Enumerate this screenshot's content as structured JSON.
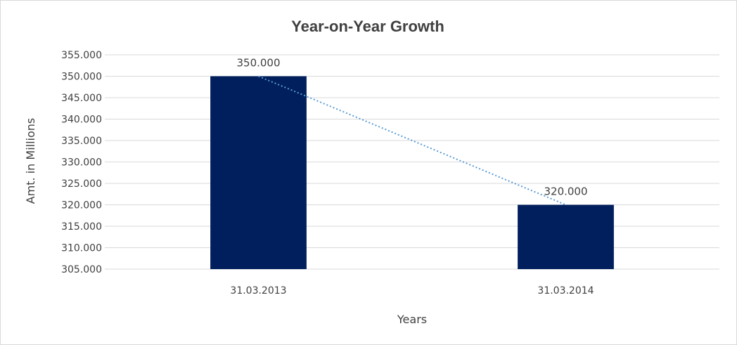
{
  "chart_data": {
    "type": "bar",
    "title": "Year-on-Year Growth",
    "xlabel": "Years",
    "ylabel": "Amt. in Millions",
    "categories": [
      "31.03.2013",
      "31.03.2014"
    ],
    "values": [
      350,
      320
    ],
    "data_labels": [
      "350.000",
      "320.000"
    ],
    "ylim": [
      305,
      355
    ],
    "ytick_step": 5,
    "ytick_labels": [
      "305.000",
      "310.000",
      "315.000",
      "320.000",
      "325.000",
      "330.000",
      "335.000",
      "340.000",
      "345.000",
      "350.000",
      "355.000"
    ],
    "grid": true,
    "legend": "none",
    "trendline": {
      "type": "linear",
      "style": "dotted",
      "color": "#5b9bd5"
    },
    "bar_color": "#001f5c",
    "grid_color": "#d9d9d9"
  }
}
